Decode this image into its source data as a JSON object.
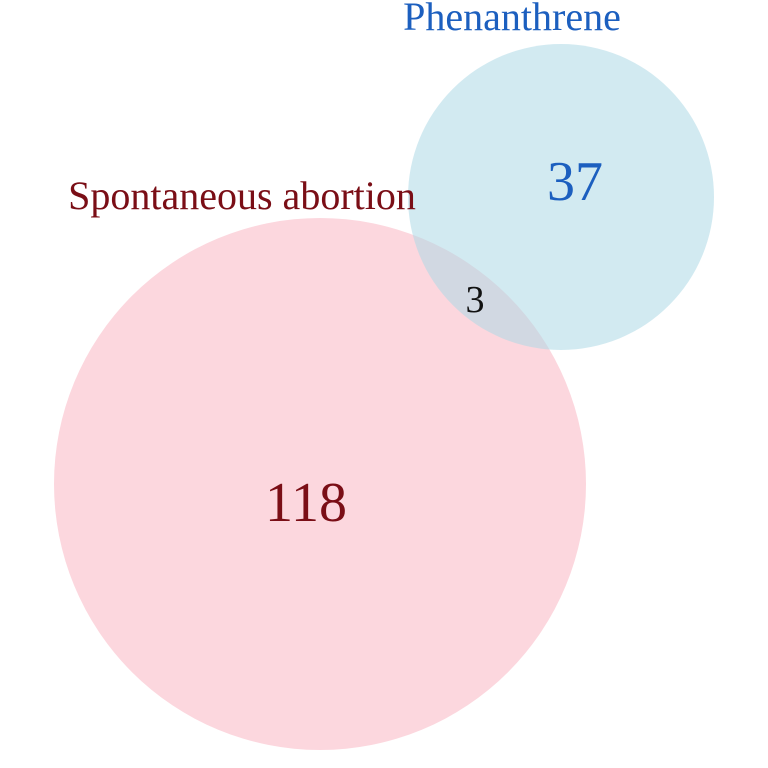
{
  "venn": {
    "sets": [
      {
        "key": "spontaneous_abortion",
        "label": "Spontaneous abortion",
        "only_count": "118",
        "fill_color": "#fcd5dc",
        "label_color": "#7a0e16"
      },
      {
        "key": "phenanthrene",
        "label": "Phenanthrene",
        "only_count": "37",
        "fill_color": "#add8e6",
        "label_color": "#1c5fbf"
      }
    ],
    "intersection": {
      "count": "3",
      "color": "#111111"
    }
  }
}
